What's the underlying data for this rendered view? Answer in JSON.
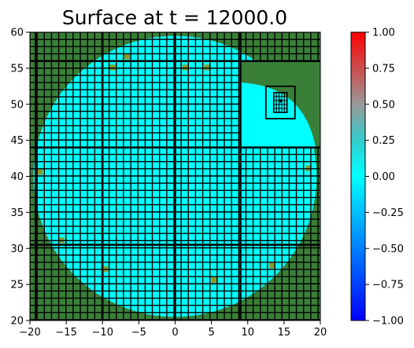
{
  "chart_data": {
    "type": "heatmap",
    "title": "Surface at t =  12000.0",
    "xlabel": "",
    "ylabel": "",
    "xlim": [
      -20,
      20
    ],
    "ylim": [
      20,
      60
    ],
    "x_ticks": [
      -20,
      -15,
      -10,
      -5,
      0,
      5,
      10,
      15,
      20
    ],
    "x_tick_labels": [
      "−20",
      "−15",
      "−10",
      "−5",
      "0",
      "5",
      "10",
      "15",
      "20"
    ],
    "y_ticks": [
      20,
      25,
      30,
      35,
      40,
      45,
      50,
      55,
      60
    ],
    "y_tick_labels": [
      "20",
      "25",
      "30",
      "35",
      "40",
      "45",
      "50",
      "55",
      "60"
    ],
    "grid": false,
    "colorbar": {
      "range": [
        -1.0,
        1.0
      ],
      "ticks": [
        1.0,
        0.75,
        0.5,
        0.25,
        0.0,
        -0.25,
        -0.5,
        -0.75,
        -1.0
      ],
      "tick_labels": [
        "1.00",
        "0.75",
        "0.50",
        "0.25",
        "0.00",
        "−0.25",
        "−0.50",
        "−0.75",
        "−1.00"
      ],
      "colormap_stops": [
        {
          "value": -1.0,
          "color": "#0000ff"
        },
        {
          "value": 0.0,
          "color": "#00ffff"
        },
        {
          "value": 0.25,
          "color": "#33cccc"
        },
        {
          "value": 0.5,
          "color": "#999999"
        },
        {
          "value": 1.0,
          "color": "#ff0000"
        }
      ]
    },
    "regions": {
      "land_color": "#3a7f38",
      "water_color": "#00ffff",
      "dry_yellow_color": "#8a9a2a",
      "water_disk": {
        "center_x": 0,
        "center_y": 40,
        "radius": 19.5
      },
      "land_top_right": {
        "x_min": 9,
        "x_max": 20,
        "y_min": 44,
        "y_max": 56
      },
      "refined_water_box": {
        "x_min": 12.5,
        "x_max": 16.5,
        "y_min": 48,
        "y_max": 52.5
      }
    },
    "surface_value_water": 0.0
  }
}
